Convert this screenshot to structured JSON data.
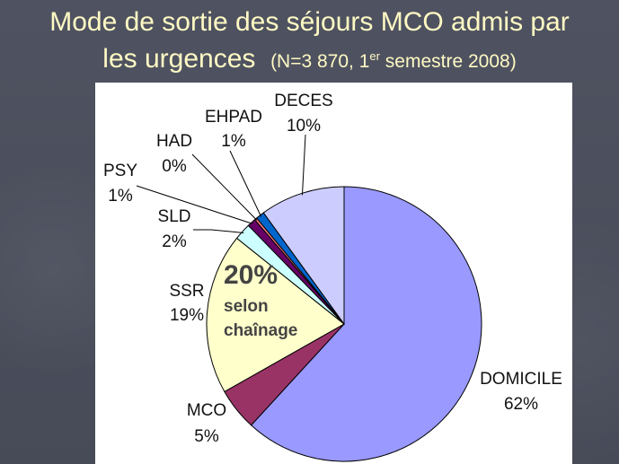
{
  "slide": {
    "title_line1": "Mode de sortie des séjours MCO admis par",
    "title_line2": "les urgences",
    "title_paren_open": "(N=3 870, 1",
    "title_sup": "er",
    "title_paren_close": " semestre 2008)"
  },
  "chart_data": {
    "type": "pie",
    "title": "Mode de sortie des séjours MCO admis par les urgences (N=3 870, 1er semestre 2008)",
    "slices": [
      {
        "label": "DOMICILE",
        "value_label": "62%",
        "value": 62,
        "color": "#9999ff"
      },
      {
        "label": "MCO",
        "value_label": "5%",
        "value": 5,
        "color": "#993366"
      },
      {
        "label": "SSR",
        "value_label": "19%",
        "value": 19,
        "color": "#ffffcc"
      },
      {
        "label": "SLD",
        "value_label": "2%",
        "value": 2,
        "color": "#ccffff"
      },
      {
        "label": "PSY",
        "value_label": "1%",
        "value": 1,
        "color": "#660066"
      },
      {
        "label": "HAD",
        "value_label": "0%",
        "value": 0.3,
        "color": "#ff8080"
      },
      {
        "label": "EHPAD",
        "value_label": "1%",
        "value": 1,
        "color": "#0066cc"
      },
      {
        "label": "DECES",
        "value_label": "10%",
        "value": 10,
        "color": "#ccccff"
      }
    ],
    "annotation": {
      "value": "20%",
      "line1": "selon",
      "line2": "chaînage"
    }
  }
}
